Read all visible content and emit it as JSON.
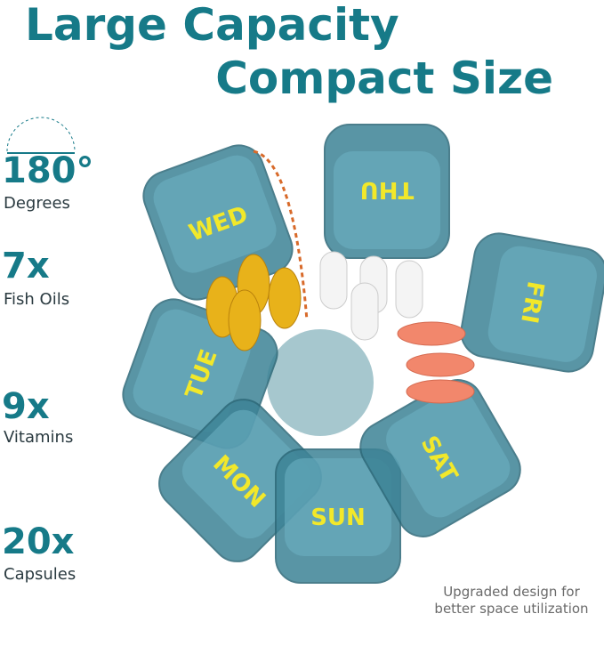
{
  "header": {
    "line1": "Large Capacity",
    "line2": "Compact Size"
  },
  "features": [
    {
      "big": "180°",
      "small": "Degrees"
    },
    {
      "big": "7x",
      "small": "Fish Oils"
    },
    {
      "big": "9x",
      "small": "Vitamins"
    },
    {
      "big": "20x",
      "small": "Capsules"
    }
  ],
  "compartments": [
    {
      "label": "WED"
    },
    {
      "label": "THU"
    },
    {
      "label": "FRI"
    },
    {
      "label": "TUE"
    },
    {
      "label": "MON"
    },
    {
      "label": "SUN"
    },
    {
      "label": "SAT"
    }
  ],
  "note": {
    "line1": "Upgraded design for",
    "line2": "better space utilization"
  }
}
